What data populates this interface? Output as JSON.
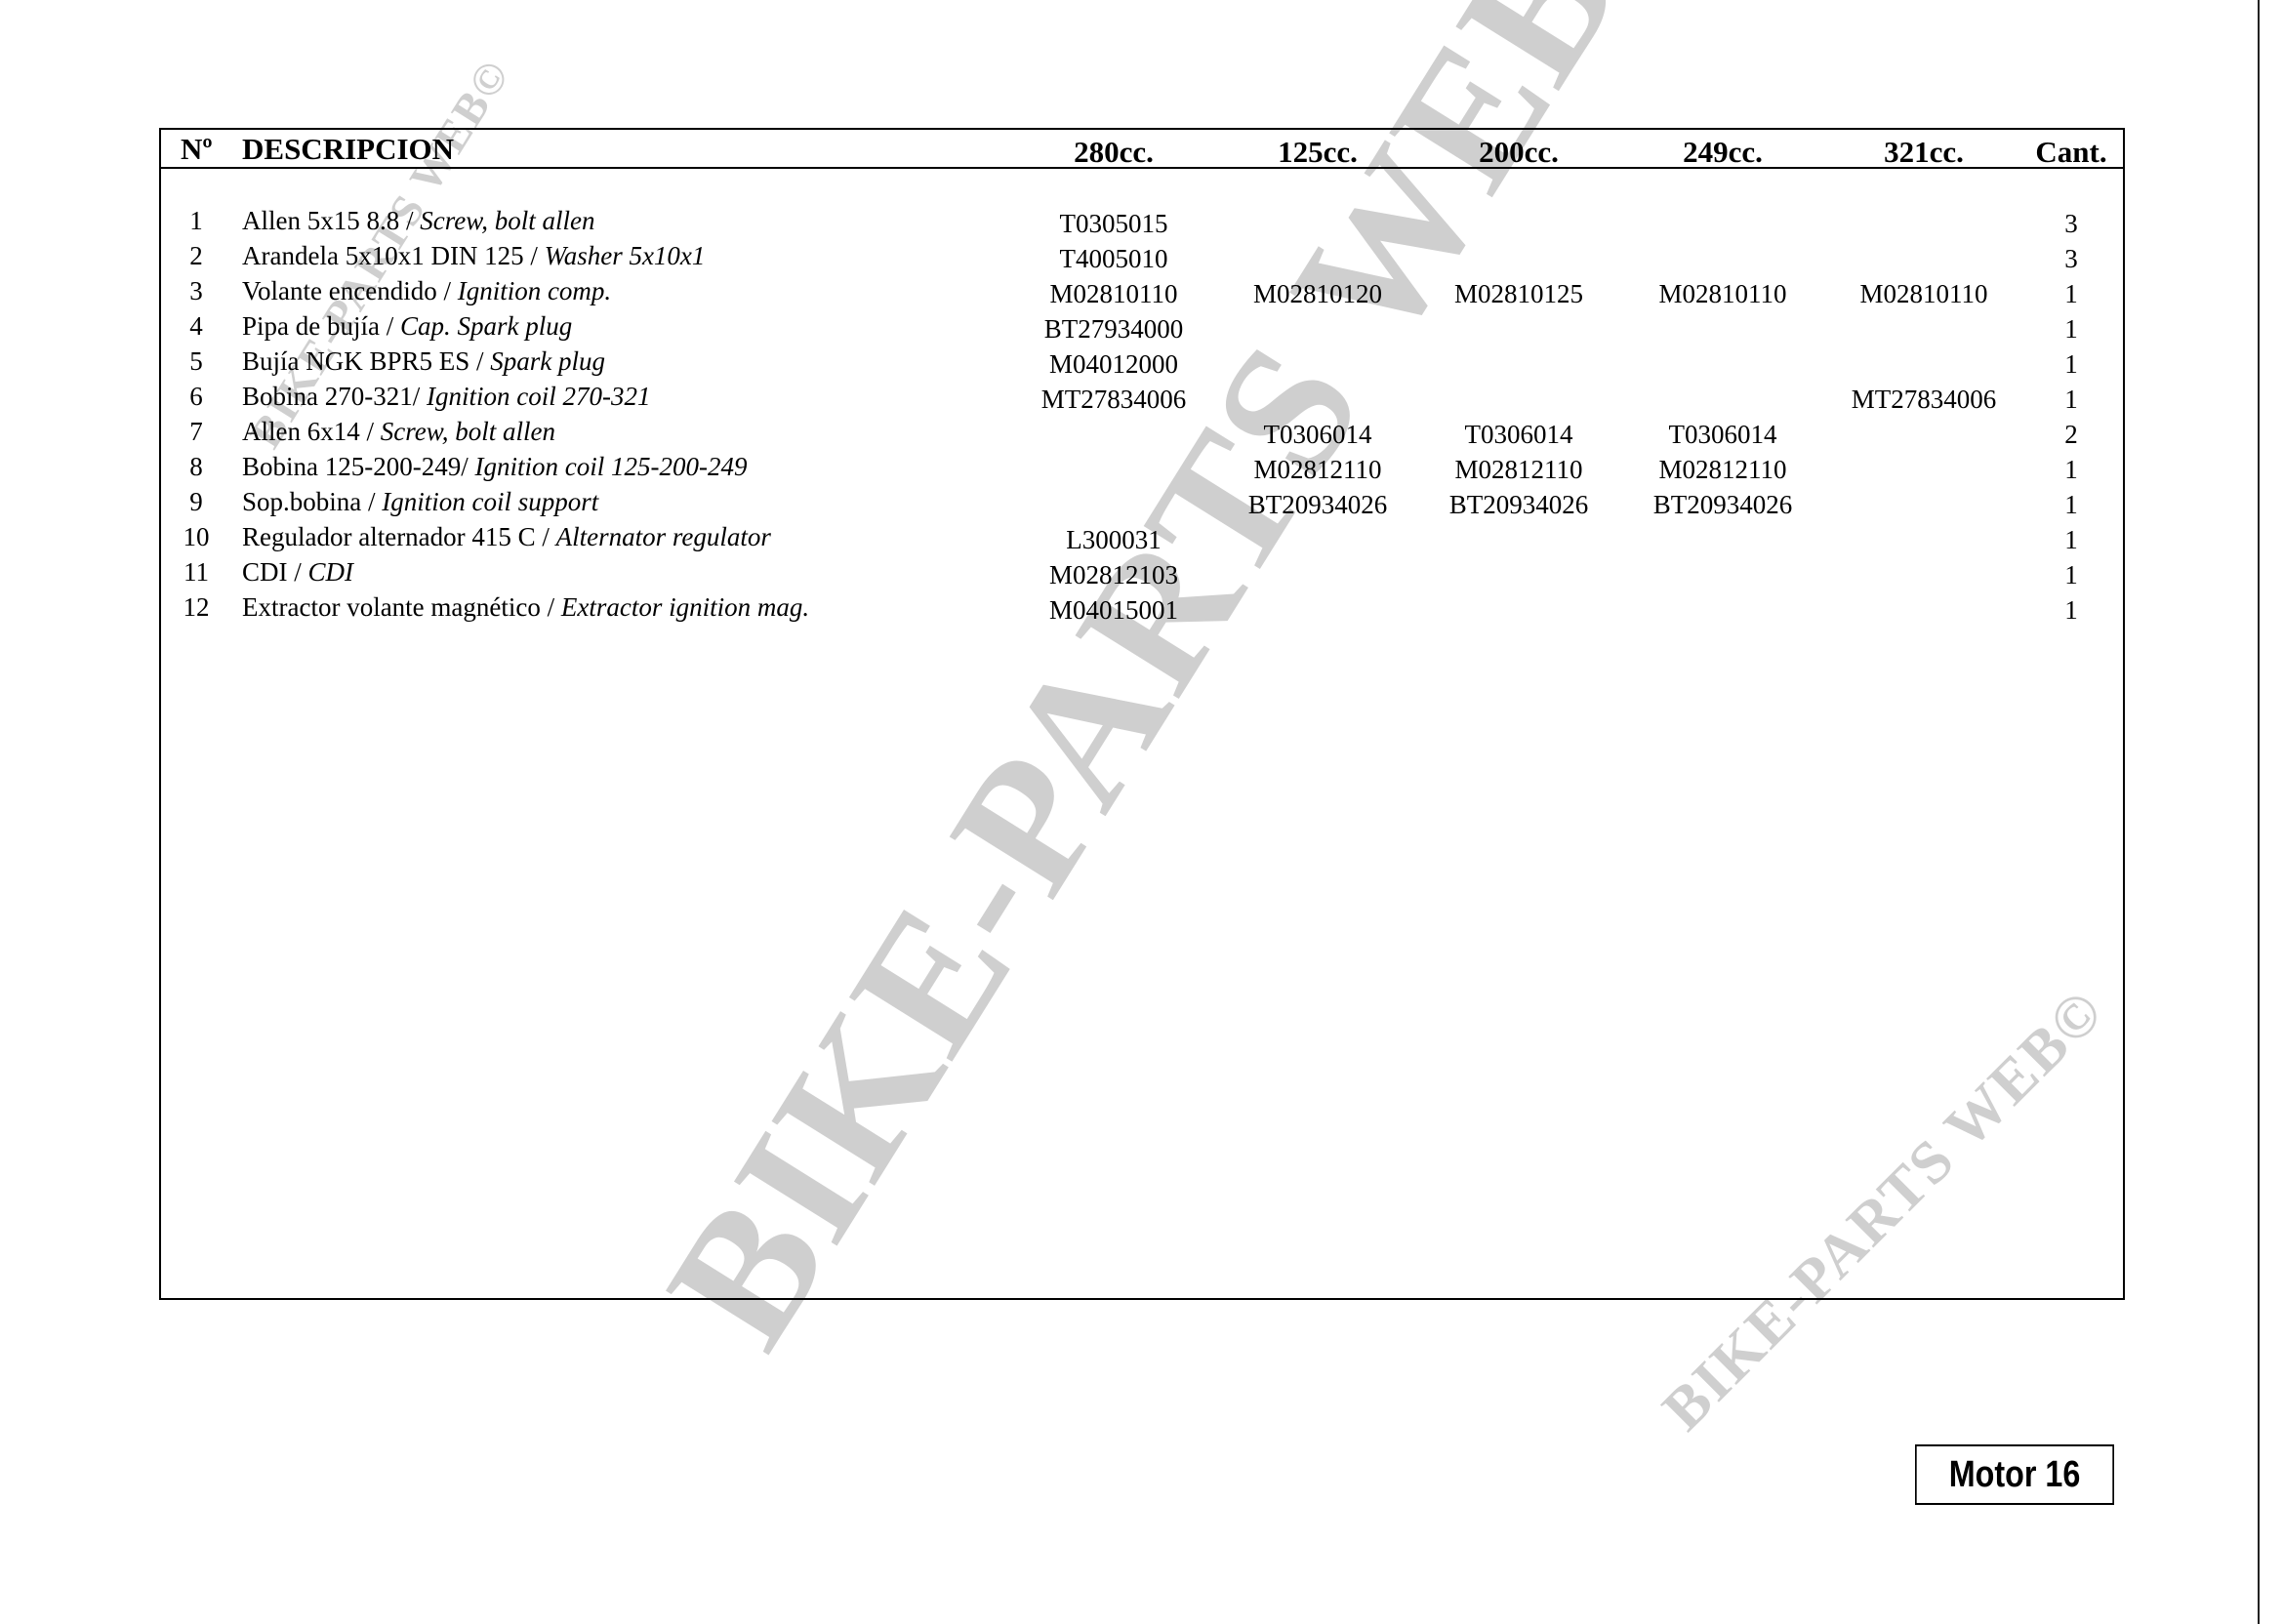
{
  "watermark": "BIKE-PARTS WEB©",
  "table": {
    "headers": {
      "no": "Nº",
      "desc": "DESCRIPCION",
      "c280": "280cc.",
      "c125": "125cc.",
      "c200": "200cc.",
      "c249": "249cc.",
      "c321": "321cc.",
      "cant": "Cant."
    },
    "rows": [
      {
        "no": "1",
        "es": "Allen 5x15 8.8 / ",
        "en": "Screw, bolt allen",
        "c280": "T0305015",
        "c125": "",
        "c200": "",
        "c249": "",
        "c321": "",
        "cant": "3"
      },
      {
        "no": "2",
        "es": "Arandela 5x10x1 DIN 125 / ",
        "en": "Washer 5x10x1",
        "c280": "T4005010",
        "c125": "",
        "c200": "",
        "c249": "",
        "c321": "",
        "cant": "3"
      },
      {
        "no": "3",
        "es": "Volante encendido / ",
        "en": "Ignition comp.",
        "c280": "M02810110",
        "c125": "M02810120",
        "c200": "M02810125",
        "c249": "M02810110",
        "c321": "M02810110",
        "cant": "1"
      },
      {
        "no": "4",
        "es": "Pipa de bujía / ",
        "en": "Cap. Spark plug",
        "c280": "BT27934000",
        "c125": "",
        "c200": "",
        "c249": "",
        "c321": "",
        "cant": "1"
      },
      {
        "no": "5",
        "es": "Bujía NGK BPR5 ES / ",
        "en": "Spark plug",
        "c280": "M04012000",
        "c125": "",
        "c200": "",
        "c249": "",
        "c321": "",
        "cant": "1"
      },
      {
        "no": "6",
        "es": "Bobina 270-321/ ",
        "en": "Ignition coil 270-321",
        "c280": "MT27834006",
        "c125": "",
        "c200": "",
        "c249": "",
        "c321": "MT27834006",
        "cant": "1"
      },
      {
        "no": "7",
        "es": "Allen 6x14 / ",
        "en": "Screw, bolt allen",
        "c280": "",
        "c125": "T0306014",
        "c200": "T0306014",
        "c249": "T0306014",
        "c321": "",
        "cant": "2"
      },
      {
        "no": "8",
        "es": "Bobina 125-200-249/ ",
        "en": "Ignition coil 125-200-249",
        "c280": "",
        "c125": "M02812110",
        "c200": "M02812110",
        "c249": "M02812110",
        "c321": "",
        "cant": "1"
      },
      {
        "no": "9",
        "es": "Sop.bobina / ",
        "en": "Ignition coil support",
        "c280": "",
        "c125": "BT20934026",
        "c200": "BT20934026",
        "c249": "BT20934026",
        "c321": "",
        "cant": "1"
      },
      {
        "no": "10",
        "es": "Regulador alternador 415 C / ",
        "en": "Alternator regulator",
        "c280": "L300031",
        "c125": "",
        "c200": "",
        "c249": "",
        "c321": "",
        "cant": "1"
      },
      {
        "no": "11",
        "es": "CDI / ",
        "en": "CDI",
        "c280": "M02812103",
        "c125": "",
        "c200": "",
        "c249": "",
        "c321": "",
        "cant": "1"
      },
      {
        "no": "12",
        "es": "Extractor volante magnético / ",
        "en": "Extractor ignition mag.",
        "c280": "M04015001",
        "c125": "",
        "c200": "",
        "c249": "",
        "c321": "",
        "cant": "1"
      }
    ]
  },
  "page_label": "Motor 16"
}
